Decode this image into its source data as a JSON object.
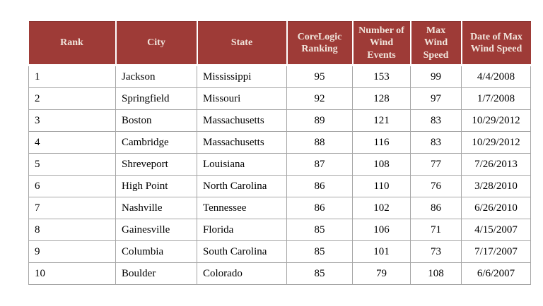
{
  "table": {
    "columns": [
      {
        "id": "rank",
        "label": "Rank"
      },
      {
        "id": "city",
        "label": "City"
      },
      {
        "id": "state",
        "label": "State"
      },
      {
        "id": "ranking",
        "label": "CoreLogic Ranking"
      },
      {
        "id": "events",
        "label": "Number of Wind Events"
      },
      {
        "id": "max_speed",
        "label": "Max Wind Speed"
      },
      {
        "id": "date",
        "label": "Date of Max Wind Speed"
      }
    ],
    "rows": [
      [
        "1",
        "Jackson",
        "Mississippi",
        "95",
        "153",
        "99",
        "4/4/2008"
      ],
      [
        "2",
        "Springfield",
        "Missouri",
        "92",
        "128",
        "97",
        "1/7/2008"
      ],
      [
        "3",
        "Boston",
        "Massachusetts",
        "89",
        "121",
        "83",
        "10/29/2012"
      ],
      [
        "4",
        "Cambridge",
        "Massachusetts",
        "88",
        "116",
        "83",
        "10/29/2012"
      ],
      [
        "5",
        "Shreveport",
        "Louisiana",
        "87",
        "108",
        "77",
        "7/26/2013"
      ],
      [
        "6",
        "High Point",
        "North Carolina",
        "86",
        "110",
        "76",
        "3/28/2010"
      ],
      [
        "7",
        "Nashville",
        "Tennessee",
        "86",
        "102",
        "86",
        "6/26/2010"
      ],
      [
        "8",
        "Gainesville",
        "Florida",
        "85",
        "106",
        "71",
        "4/15/2007"
      ],
      [
        "9",
        "Columbia",
        "South Carolina",
        "85",
        "101",
        "73",
        "7/17/2007"
      ],
      [
        "10",
        "Boulder",
        "Colorado",
        "85",
        "79",
        "108",
        "6/6/2007"
      ]
    ]
  },
  "chart_data": {
    "type": "table",
    "title": "",
    "columns": [
      "Rank",
      "City",
      "State",
      "CoreLogic Ranking",
      "Number of Wind Events",
      "Max Wind Speed",
      "Date of Max Wind Speed"
    ],
    "rows": [
      [
        1,
        "Jackson",
        "Mississippi",
        95,
        153,
        99,
        "4/4/2008"
      ],
      [
        2,
        "Springfield",
        "Missouri",
        92,
        128,
        97,
        "1/7/2008"
      ],
      [
        3,
        "Boston",
        "Massachusetts",
        89,
        121,
        83,
        "10/29/2012"
      ],
      [
        4,
        "Cambridge",
        "Massachusetts",
        88,
        116,
        83,
        "10/29/2012"
      ],
      [
        5,
        "Shreveport",
        "Louisiana",
        87,
        108,
        77,
        "7/26/2013"
      ],
      [
        6,
        "High Point",
        "North Carolina",
        86,
        110,
        76,
        "3/28/2010"
      ],
      [
        7,
        "Nashville",
        "Tennessee",
        86,
        102,
        86,
        "6/26/2010"
      ],
      [
        8,
        "Gainesville",
        "Florida",
        85,
        106,
        71,
        "4/15/2007"
      ],
      [
        9,
        "Columbia",
        "South Carolina",
        85,
        101,
        73,
        "7/17/2007"
      ],
      [
        10,
        "Boulder",
        "Colorado",
        85,
        79,
        108,
        "6/6/2007"
      ]
    ]
  },
  "colors": {
    "header_bg": "#9E3B37",
    "header_text": "#F1E5DC",
    "body_border": "#A6A6A6",
    "body_text": "#000000"
  }
}
